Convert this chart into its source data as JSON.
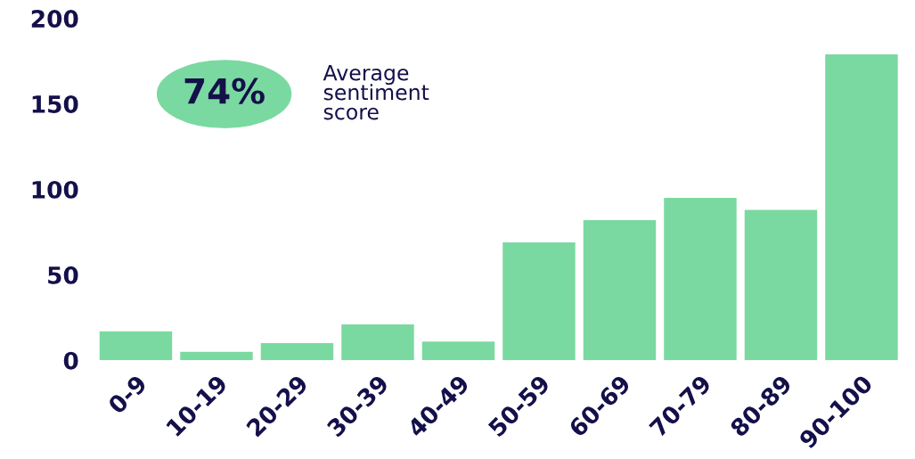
{
  "chart_data": {
    "type": "bar",
    "categories": [
      "0-9",
      "10-19",
      "20-29",
      "30-39",
      "40-49",
      "50-59",
      "60-69",
      "70-79",
      "80-89",
      "90-100"
    ],
    "values": [
      17,
      5,
      10,
      21,
      11,
      69,
      82,
      95,
      88,
      179
    ],
    "color": "#7ad9a0",
    "ylim": [
      0,
      200
    ],
    "yticks": [
      0,
      50,
      100,
      150,
      200
    ],
    "grid": false,
    "legend": false,
    "annotations": [
      "74%",
      "Average\nsentiment\nscore"
    ]
  }
}
